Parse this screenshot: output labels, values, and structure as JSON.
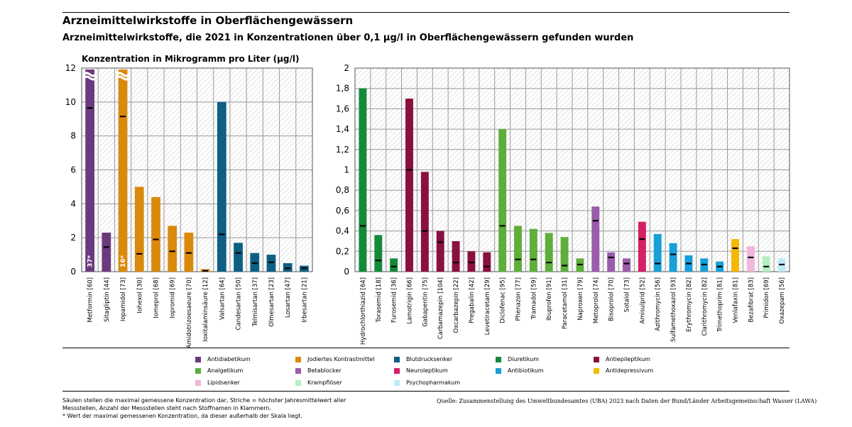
{
  "title": "Arzneimittelwirkstoffe in Oberflächengewässern",
  "subtitle": "Arzneimittelwirkstoffe, die 2021 in Konzentrationen über 0,1 µg/l in Oberflächengewässern gefunden wurden",
  "footnote_lines": [
    "Säulen stellen die maximal gemessene Konzentration dar, Striche = höchster Jahresmittelwert aller",
    "Messstellen, Anzahl der Messstellen steht nach Stoffnamen in Klammern.",
    "* Wert der maximal gemessenen Konzentration, da dieser außerhalb der Skala liegt."
  ],
  "source": "Quelle: Zusammenstellung des Umweltbundesamtes (UBA) 2023 nach Daten der Bund/Länder Arbeitsgemeinschaft Wasser (LAWA)",
  "legend": [
    {
      "label": "Antidiabetikum",
      "color": "#6b3a7d"
    },
    {
      "label": "Jodiertes Kontrastmittel",
      "color": "#d98a0c"
    },
    {
      "label": "Blutdrucksenker",
      "color": "#0e5f84"
    },
    {
      "label": "Diuretikum",
      "color": "#138a3a"
    },
    {
      "label": "Antiepileptikum",
      "color": "#8a1040"
    },
    {
      "label": "Analgetikum",
      "color": "#5fae3b"
    },
    {
      "label": "Betablocker",
      "color": "#9b5cab"
    },
    {
      "label": "Neuroleptikum",
      "color": "#d42065"
    },
    {
      "label": "Antibiotikum",
      "color": "#16a0d8"
    },
    {
      "label": "Antidepressivum",
      "color": "#f5b800"
    },
    {
      "label": "Lipidsenker",
      "color": "#f0b6db"
    },
    {
      "label": "Krampflöser",
      "color": "#b3f0c0"
    },
    {
      "label": "Psychopharmakum",
      "color": "#bfeaf5"
    }
  ],
  "chart_data": [
    {
      "type": "bar",
      "ylabel": "Konzentration in Mikrogramm pro Liter (µg/l)",
      "ylim": [
        0,
        12
      ],
      "yticks": [
        "0",
        "2",
        "4",
        "6",
        "8",
        "10",
        "12"
      ],
      "grid": true,
      "categories": [
        "Metformin [60]",
        "Sitagliptin [44]",
        "Iopamidol [73]",
        "Iohexol [30]",
        "Iomeprol [68]",
        "Iopromid [69]",
        "Amidotrizoesaeure [70]",
        "Ioxitalaminsäure [12]",
        "Valsartan [64]",
        "Candesartan [50]",
        "Telmisartan [37]",
        "Olmesartan [23]",
        "Losartan [47]",
        "Irbesartan [21]"
      ],
      "max_values": [
        37,
        2.3,
        16,
        5.0,
        4.4,
        2.7,
        2.3,
        0.15,
        10.0,
        1.7,
        1.1,
        1.0,
        0.5,
        0.35
      ],
      "annual_mean_max": [
        9.65,
        1.45,
        9.15,
        1.05,
        1.9,
        1.2,
        1.1,
        0.05,
        2.2,
        1.1,
        0.5,
        0.55,
        0.2,
        0.2
      ],
      "off_scale_labels": [
        "37*",
        "",
        "16*",
        "",
        "",
        "",
        "",
        "",
        "",
        "",
        "",
        "",
        "",
        ""
      ],
      "colors": [
        "#6b3a7d",
        "#6b3a7d",
        "#d98a0c",
        "#d98a0c",
        "#d98a0c",
        "#d98a0c",
        "#d98a0c",
        "#d98a0c",
        "#0e5f84",
        "#0e5f84",
        "#0e5f84",
        "#0e5f84",
        "#0e5f84",
        "#0e5f84"
      ]
    },
    {
      "type": "bar",
      "ylim": [
        0,
        2
      ],
      "yticks": [
        "0",
        "0,2",
        "0,4",
        "0,6",
        "0,8",
        "1",
        "1,2",
        "1,4",
        "1,6",
        "1,8",
        "2"
      ],
      "grid": true,
      "categories": [
        "Hydrochlorthiazid [64]",
        "Torasemid [18]",
        "Furosemid [36]",
        "Lamotrigin [66]",
        "Gabapentin [75]",
        "Carbamazepin [104]",
        "Oxcarbazepin [22]",
        "Pregabalin [42]",
        "Levetiracetam [29]",
        "Diclofenac [95]",
        "Phenazon [77]",
        "Tramadol [59]",
        "Ibuprofen [91]",
        "Paracetamol [31]",
        "Naproxen [79]",
        "Metoprolol [74]",
        "Bisoprolol [70]",
        "Sotalol [73]",
        "Amisulprid [52]",
        "Azithromycin [56]",
        "Sulfamethoxazol [93]",
        "Erythromycin [82]",
        "Clarithromycin [82]",
        "Trimethoprim [81]",
        "Venlafaxin [81]",
        "Bezafibrat [83]",
        "Primidon [69]",
        "Oxazepam [56]"
      ],
      "max_values": [
        1.8,
        0.36,
        0.13,
        1.7,
        0.98,
        0.4,
        0.3,
        0.2,
        0.19,
        1.4,
        0.45,
        0.42,
        0.38,
        0.34,
        0.13,
        0.64,
        0.19,
        0.13,
        0.49,
        0.37,
        0.28,
        0.16,
        0.13,
        0.1,
        0.32,
        0.25,
        0.15,
        0.13
      ],
      "annual_mean_max": [
        0.45,
        0.11,
        0.05,
        1.0,
        0.4,
        0.29,
        0.09,
        0.09,
        0.05,
        0.45,
        0.12,
        0.12,
        0.09,
        0.06,
        0.07,
        0.5,
        0.14,
        0.08,
        0.32,
        0.08,
        0.17,
        0.08,
        0.07,
        0.05,
        0.23,
        0.14,
        0.05,
        0.07
      ],
      "colors": [
        "#138a3a",
        "#138a3a",
        "#138a3a",
        "#8a1040",
        "#8a1040",
        "#8a1040",
        "#8a1040",
        "#8a1040",
        "#8a1040",
        "#5fae3b",
        "#5fae3b",
        "#5fae3b",
        "#5fae3b",
        "#5fae3b",
        "#5fae3b",
        "#9b5cab",
        "#9b5cab",
        "#9b5cab",
        "#d42065",
        "#16a0d8",
        "#16a0d8",
        "#16a0d8",
        "#16a0d8",
        "#16a0d8",
        "#f5b800",
        "#f0b6db",
        "#b3f0c0",
        "#bfeaf5"
      ]
    }
  ]
}
